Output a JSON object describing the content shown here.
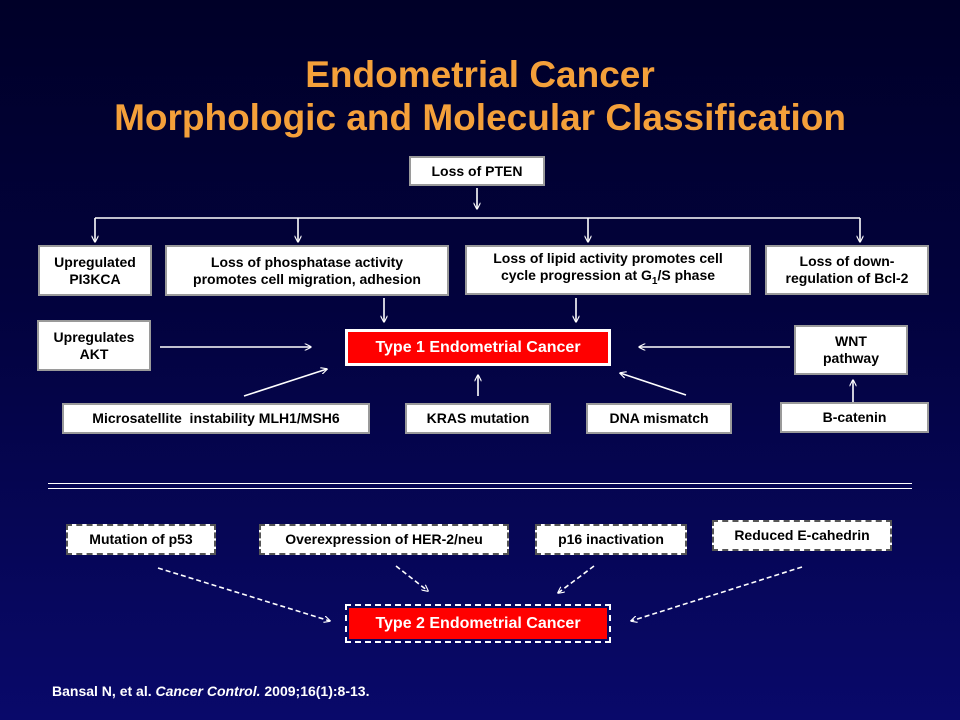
{
  "title": {
    "line1": "Endometrial Cancer",
    "line2": "Morphologic and Molecular Classification"
  },
  "type1": {
    "root": "Loss of PTEN",
    "branches": {
      "pi3kca_line1": "Upregulated",
      "pi3kca_line2": "PI3KCA",
      "phosphatase_line1": "Loss of phosphatase activity",
      "phosphatase_line2": "promotes cell migration, adhesion",
      "lipid_line1": "Loss of lipid activity promotes cell",
      "lipid_line2_pre": "cycle progression at G",
      "lipid_line2_sub": "1",
      "lipid_line2_post": "/S phase",
      "bcl2_line1": "Loss of down-",
      "bcl2_line2": "regulation of Bcl-2"
    },
    "akt_line1": "Upregulates",
    "akt_line2": "AKT",
    "wnt_line1": "WNT",
    "wnt_line2": "pathway",
    "center": "Type 1 Endometrial Cancer",
    "microsatellite": "Microsatellite  instability MLH1/MSH6",
    "kras": "KRAS mutation",
    "dna": "DNA mismatch",
    "bcatenin": "B-catenin"
  },
  "type2": {
    "p53": "Mutation of p53",
    "her2": "Overexpression of HER-2/neu",
    "p16": "p16 inactivation",
    "ecad": "Reduced E-cahedrin",
    "center": "Type 2 Endometrial Cancer"
  },
  "citation": {
    "authors": "Bansal N, et al.",
    "journal": "Cancer Control.",
    "ref": "2009;16(1):8-13."
  },
  "colors": {
    "title": "#f4a03a",
    "center_box": "#ff0000",
    "background": "#02023c"
  }
}
